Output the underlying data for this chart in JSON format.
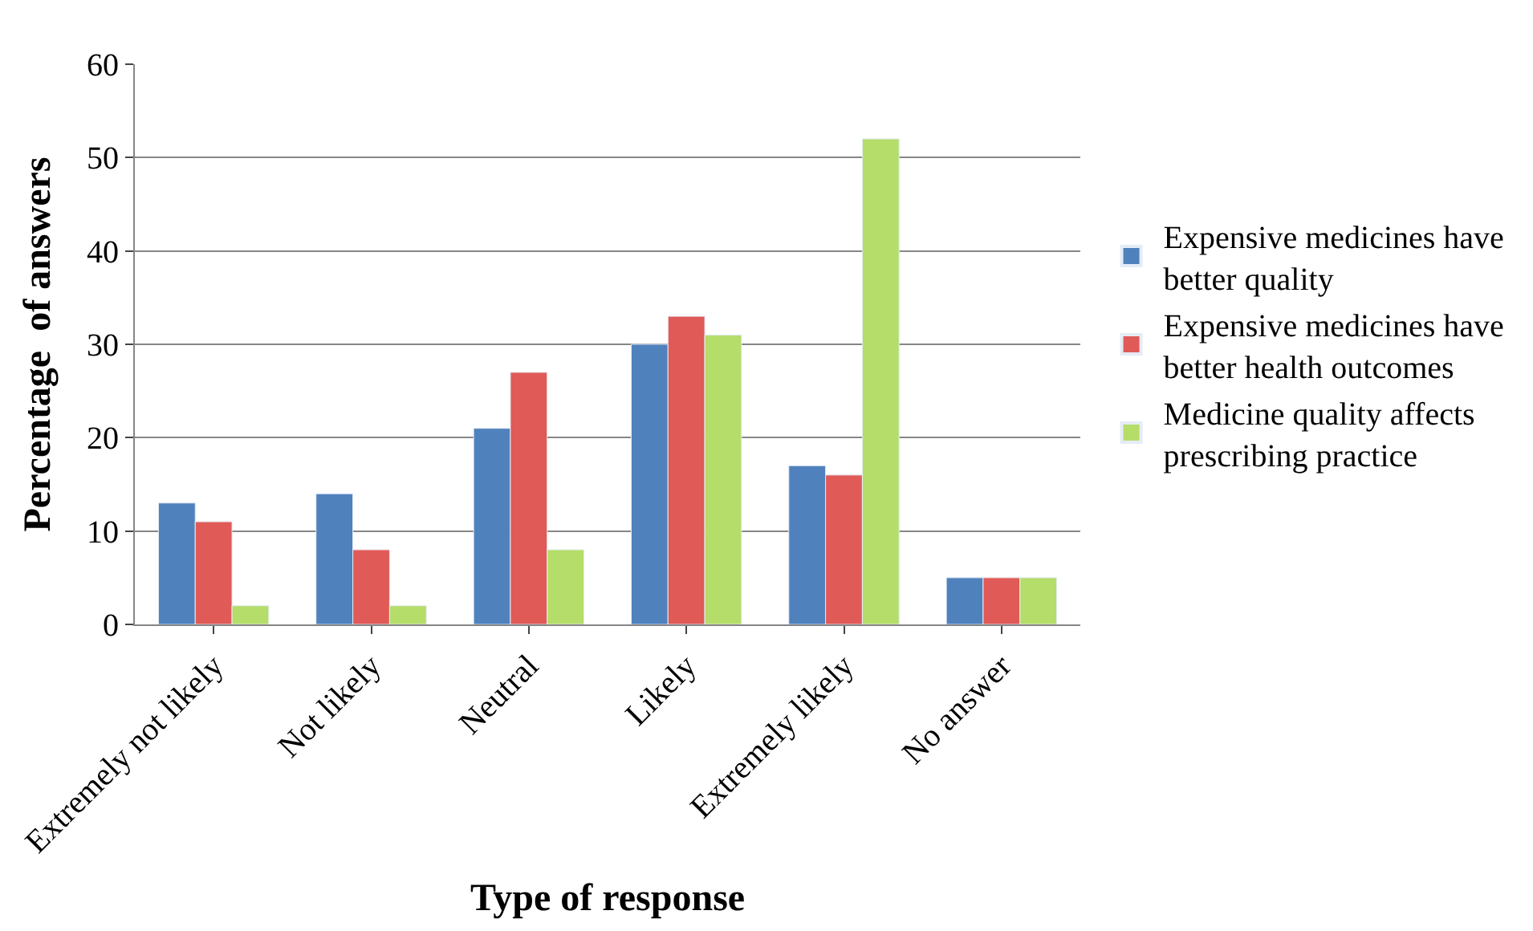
{
  "chart_data": {
    "type": "bar",
    "xlabel": "Type of response",
    "ylabel": "Percentage  of answers",
    "categories": [
      "Extremely not likely",
      "Not likely",
      "Neutral",
      "Likely",
      "Extremely likely",
      "No answer"
    ],
    "series": [
      {
        "name": "Expensive medicines have better quality",
        "color": "#4f81bd",
        "values": [
          13,
          14,
          21,
          30,
          17,
          5
        ]
      },
      {
        "name": "Expensive medicines have better health outcomes",
        "color": "#e05a57",
        "values": [
          11,
          8,
          27,
          33,
          16,
          5
        ]
      },
      {
        "name": "Medicine quality affects prescribing practice",
        "color": "#b5dd6a",
        "values": [
          2,
          2,
          8,
          31,
          52,
          5
        ]
      }
    ],
    "ylim": [
      0,
      60
    ],
    "yticks": [
      0,
      10,
      20,
      30,
      40,
      50,
      60
    ],
    "grid": "y",
    "legend": "right"
  }
}
